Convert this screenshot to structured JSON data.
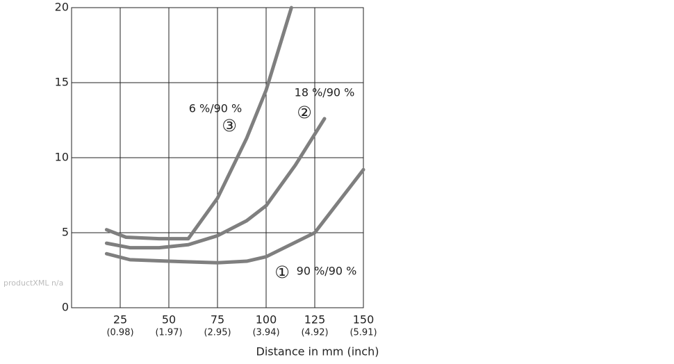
{
  "chart_data": {
    "type": "line",
    "xlabel": "Distance in mm (inch)",
    "watermark": "productXML n/a",
    "xlim": [
      0,
      150
    ],
    "ylim": [
      0,
      20
    ],
    "xticks": [
      25,
      50,
      75,
      100,
      125,
      150
    ],
    "xtick_sublabels": [
      "(0.98)",
      "(1.97)",
      "(2.95)",
      "(3.94)",
      "(4.92)",
      "(5.91)"
    ],
    "yticks": [
      0,
      5,
      10,
      15,
      20
    ],
    "grid": true,
    "series": [
      {
        "name": "90 %/90 %",
        "marker": "①",
        "color": "#7f7f7f",
        "x": [
          18,
          30,
          50,
          75,
          90,
          100,
          125,
          150
        ],
        "values": [
          3.6,
          3.2,
          3.1,
          3.0,
          3.1,
          3.4,
          5.0,
          9.2
        ]
      },
      {
        "name": "18 %/90 %",
        "marker": "②",
        "color": "#7f7f7f",
        "x": [
          18,
          30,
          45,
          60,
          75,
          90,
          100,
          115,
          130
        ],
        "values": [
          4.3,
          4.0,
          4.0,
          4.2,
          4.8,
          5.8,
          6.8,
          9.5,
          12.6
        ]
      },
      {
        "name": "6 %/90 %",
        "marker": "③",
        "color": "#7f7f7f",
        "x": [
          18,
          28,
          45,
          60,
          75,
          90,
          100,
          113
        ],
        "values": [
          5.2,
          4.7,
          4.6,
          4.6,
          7.3,
          11.3,
          14.5,
          20
        ]
      }
    ]
  }
}
